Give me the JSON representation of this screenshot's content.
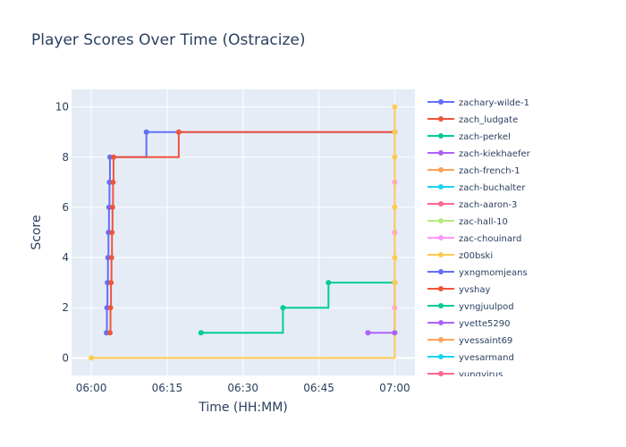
{
  "chart_data": {
    "type": "line",
    "title": "Player Scores Over Time (Ostracize)",
    "xlabel": "Time (HH:MM)",
    "ylabel": "Score",
    "x_ticks": [
      "06:00",
      "06:15",
      "06:30",
      "06:45",
      "07:00"
    ],
    "y_ticks": [
      0,
      2,
      4,
      6,
      8,
      10
    ],
    "xlim_minutes_after_0600": [
      -3.9,
      64
    ],
    "ylim": [
      -0.7,
      10.7
    ],
    "grid": true,
    "line_shape": "step-hv",
    "legend_placement": "right",
    "series": [
      {
        "name": "zachary-wilde-1",
        "color": "#636efa",
        "points": [
          [
            "06:03:00",
            1
          ],
          [
            "06:03:06",
            2
          ],
          [
            "06:03:12",
            3
          ],
          [
            "06:03:18",
            4
          ],
          [
            "06:03:24",
            5
          ],
          [
            "06:03:30",
            6
          ],
          [
            "06:03:36",
            7
          ],
          [
            "06:03:42",
            8
          ],
          [
            "06:10:54",
            9
          ],
          [
            "07:00:00",
            9
          ]
        ]
      },
      {
        "name": "zach_ludgate",
        "color": "#EF553B",
        "points": [
          [
            "06:03:42",
            1
          ],
          [
            "06:03:48",
            2
          ],
          [
            "06:03:54",
            3
          ],
          [
            "06:04:00",
            4
          ],
          [
            "06:04:06",
            5
          ],
          [
            "06:04:12",
            6
          ],
          [
            "06:04:18",
            7
          ],
          [
            "06:04:24",
            8
          ],
          [
            "06:17:18",
            9
          ],
          [
            "07:00:00",
            9
          ]
        ]
      },
      {
        "name": "zach-perkel",
        "color": "#00cc96",
        "points": [
          [
            "06:21:42",
            1
          ],
          [
            "06:37:54",
            2
          ],
          [
            "06:46:54",
            3
          ],
          [
            "07:00:00",
            3
          ]
        ]
      },
      {
        "name": "zach-kiekhaefer",
        "color": "#ab63fa",
        "points": []
      },
      {
        "name": "zach-french-1",
        "color": "#FFA15A",
        "points": []
      },
      {
        "name": "zach-buchalter",
        "color": "#19d3f3",
        "points": []
      },
      {
        "name": "zach-aaron-3",
        "color": "#FF6692",
        "points": [
          [
            "07:00:00",
            1
          ],
          [
            "07:00:00",
            3
          ]
        ]
      },
      {
        "name": "zac-hall-10",
        "color": "#B6E880",
        "points": [
          [
            "07:00:00",
            6
          ]
        ]
      },
      {
        "name": "zac-chouinard",
        "color": "#FF97FF",
        "points": [
          [
            "07:00:00",
            2
          ],
          [
            "07:00:00",
            5
          ],
          [
            "07:00:00",
            7
          ]
        ]
      },
      {
        "name": "z00bski",
        "color": "#FECB52",
        "points": [
          [
            "06:00:00",
            0
          ],
          [
            "07:00:00",
            3
          ],
          [
            "07:00:00",
            4
          ],
          [
            "07:00:00",
            6
          ],
          [
            "07:00:00",
            8
          ],
          [
            "07:00:00",
            9
          ],
          [
            "07:00:00",
            10
          ]
        ]
      },
      {
        "name": "yxngmomjeans",
        "color": "#636efa",
        "points": []
      },
      {
        "name": "yvshay",
        "color": "#EF553B",
        "points": []
      },
      {
        "name": "yvngjuulpod",
        "color": "#00cc96",
        "points": []
      },
      {
        "name": "yvette5290",
        "color": "#ab63fa",
        "points": [
          [
            "06:54:42",
            1
          ],
          [
            "07:00:00",
            1
          ]
        ]
      },
      {
        "name": "yvessaint69",
        "color": "#FFA15A",
        "points": []
      },
      {
        "name": "yvesarmand",
        "color": "#19d3f3",
        "points": []
      },
      {
        "name": "yungvirus",
        "color": "#FF6692",
        "points": []
      }
    ]
  }
}
